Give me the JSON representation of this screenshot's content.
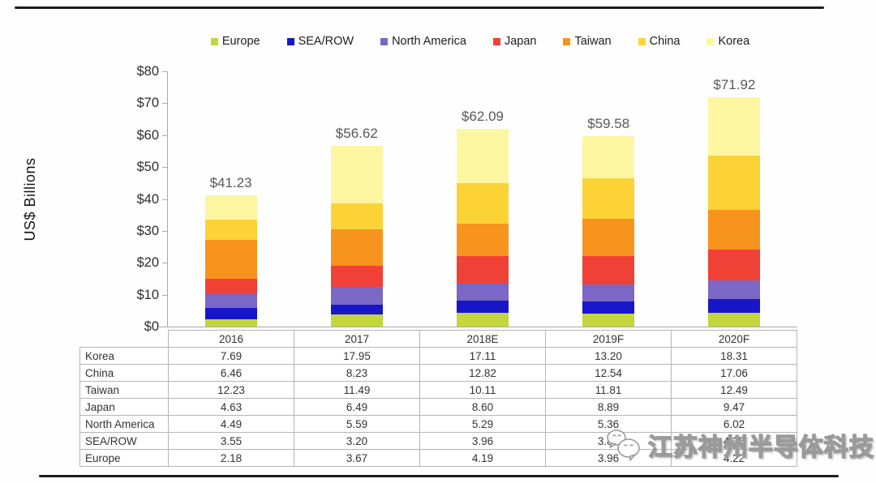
{
  "watermark": {
    "logo": "wechat-bubbles-logo",
    "text": "江苏神州半导体科技"
  },
  "chart_data": {
    "type": "stacked-bar",
    "title": "",
    "ylabel": "US$ Billions",
    "ylim": [
      0,
      80
    ],
    "ytick_step": 10,
    "ytick_labels": [
      "$0",
      "$10",
      "$20",
      "$30",
      "$40",
      "$50",
      "$60",
      "$70",
      "$80"
    ],
    "categories": [
      "2016",
      "2017",
      "2018E",
      "2019F",
      "2020F"
    ],
    "total_labels": [
      "$41.23",
      "$56.62",
      "$62.09",
      "$59.58",
      "$71.92"
    ],
    "legend_position": "top",
    "grid": false,
    "series": [
      {
        "name": "Europe",
        "color": "#c3d63b",
        "values": [
          "2.18",
          "3.67",
          "4.19",
          "3.96",
          "4.22"
        ]
      },
      {
        "name": "SEA/ROW",
        "color": "#1717c9",
        "values": [
          "3.55",
          "3.20",
          "3.96",
          "3.82",
          "4.35"
        ]
      },
      {
        "name": "North America",
        "color": "#7a67c6",
        "values": [
          "4.49",
          "5.59",
          "5.29",
          "5.36",
          "6.02"
        ]
      },
      {
        "name": "Japan",
        "color": "#f04136",
        "values": [
          "4.63",
          "6.49",
          "8.60",
          "8.89",
          "9.47"
        ]
      },
      {
        "name": "Taiwan",
        "color": "#f7941e",
        "values": [
          "12.23",
          "11.49",
          "10.11",
          "11.81",
          "12.49"
        ]
      },
      {
        "name": "China",
        "color": "#fbd337",
        "values": [
          "6.46",
          "8.23",
          "12.82",
          "12.54",
          "17.06"
        ]
      },
      {
        "name": "Korea",
        "color": "#fcf6a1",
        "values": [
          "7.69",
          "17.95",
          "17.11",
          "13.20",
          "18.31"
        ]
      }
    ],
    "table_row_order": [
      "Korea",
      "China",
      "Taiwan",
      "Japan",
      "North America",
      "SEA/ROW",
      "Europe"
    ]
  }
}
